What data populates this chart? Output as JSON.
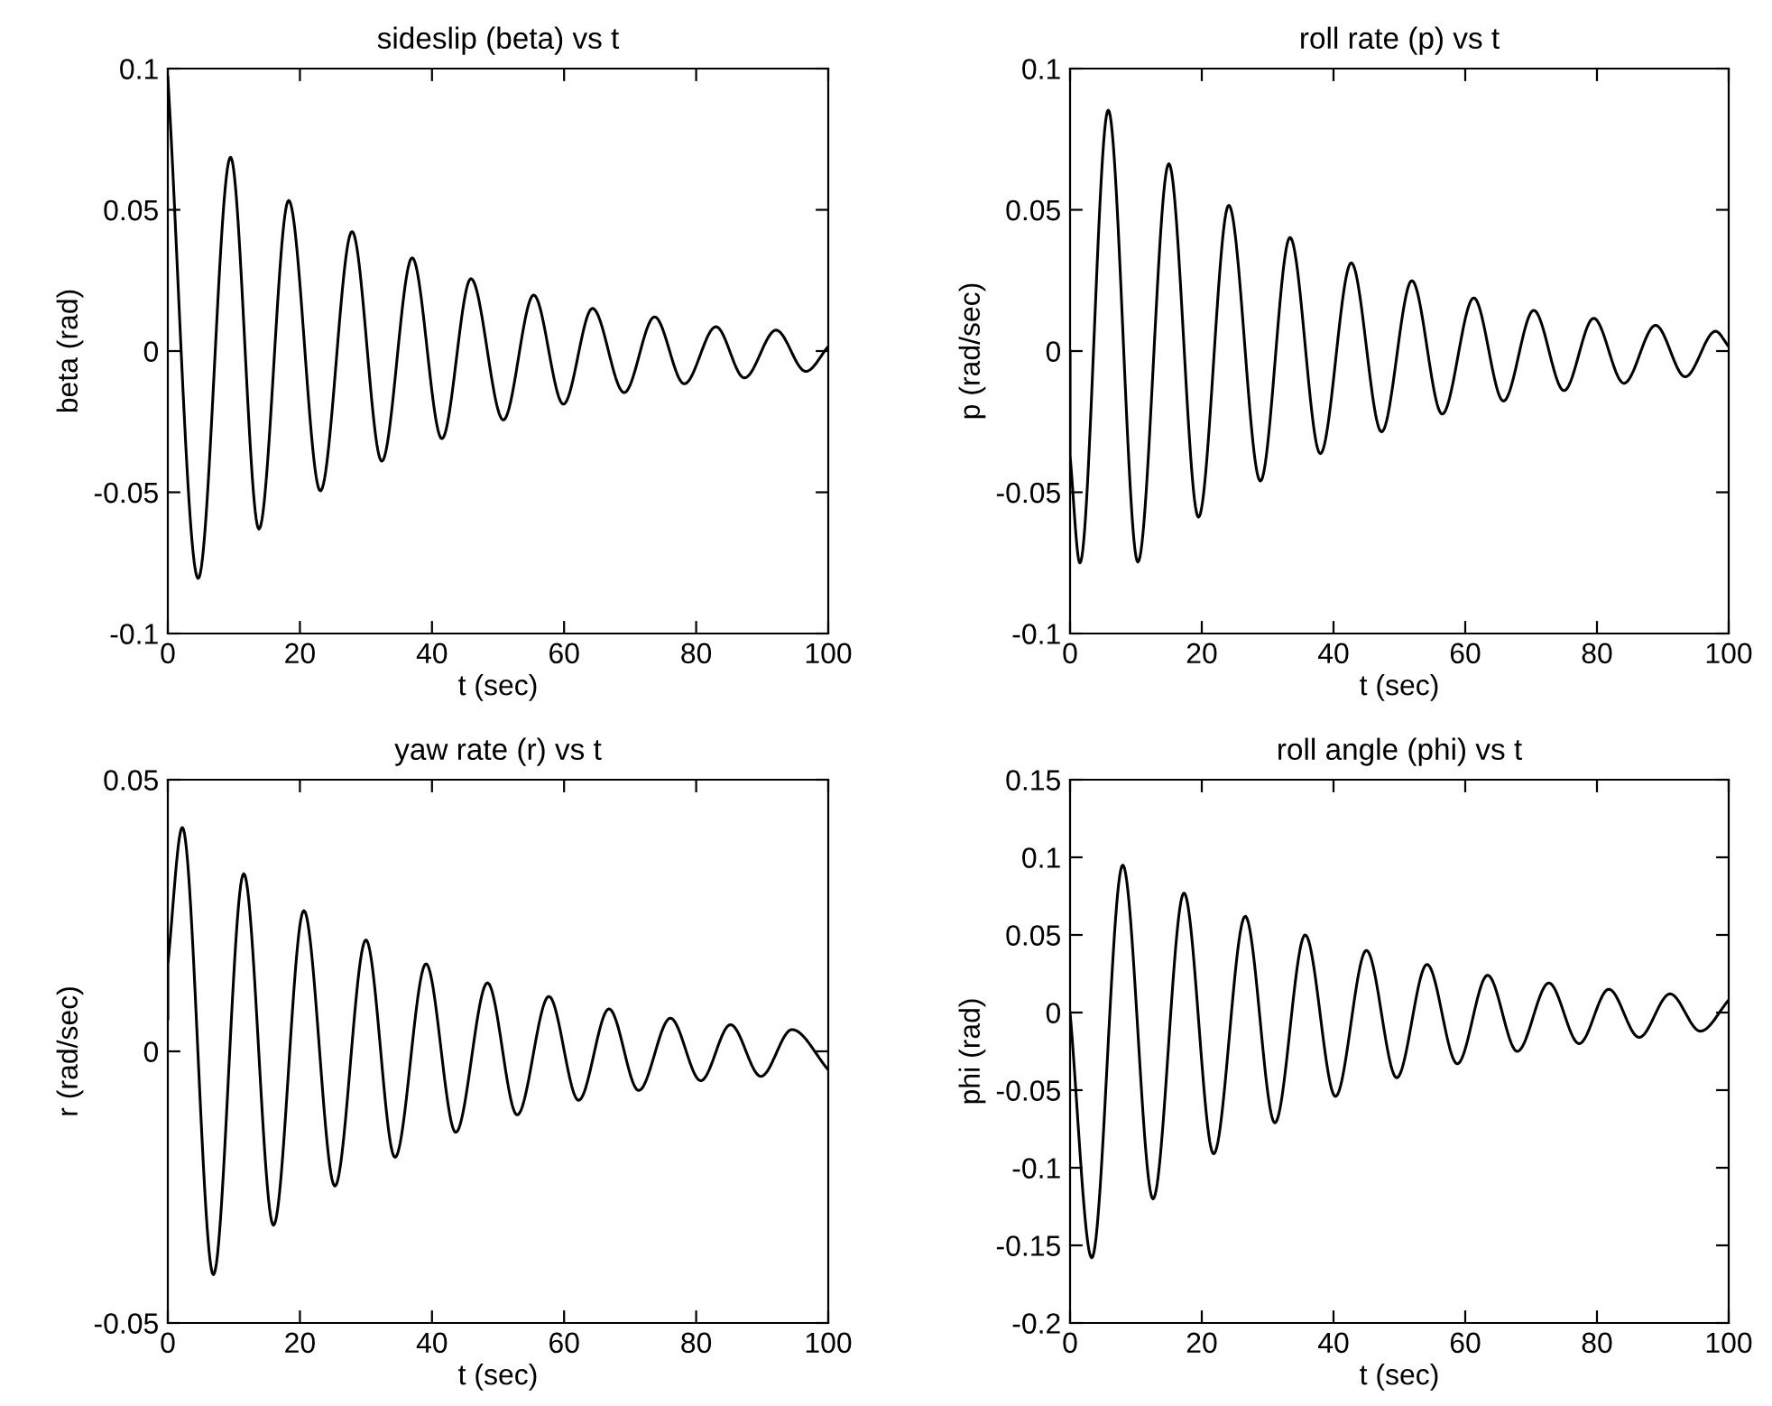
{
  "chart_data": [
    {
      "type": "line",
      "title": "sideslip (beta) vs t",
      "xlabel": "t (sec)",
      "ylabel": "beta (rad)",
      "xlim": [
        0,
        100
      ],
      "xticks": [
        0,
        20,
        40,
        60,
        80,
        100
      ],
      "ylim": [
        -0.1,
        0.1
      ],
      "yticks": [
        -0.1,
        -0.05,
        0,
        0.05,
        0.1
      ],
      "grid": false,
      "legend": false,
      "marker": "none",
      "line_style": "solid",
      "series": [
        {
          "color": "#000000",
          "x": [
            0,
            4.6,
            9.5,
            13.8,
            18.3,
            23.1,
            27.9,
            32.4,
            37,
            41.5,
            45.9,
            50.8,
            55.4,
            59.9,
            64.3,
            69.1,
            73.7,
            78.2,
            83,
            87.3,
            92.1,
            96.6,
            100
          ],
          "values": [
            0.097,
            -0.0805,
            0.0686,
            -0.063,
            0.0533,
            -0.0495,
            0.0423,
            -0.039,
            0.033,
            -0.031,
            0.0256,
            -0.0244,
            0.0198,
            -0.0188,
            0.0151,
            -0.0147,
            0.0121,
            -0.0116,
            0.0086,
            -0.0095,
            0.0074,
            -0.0072,
            0.0016
          ]
        }
      ]
    },
    {
      "type": "line",
      "title": "roll rate (p) vs t",
      "xlabel": "t (sec)",
      "ylabel": "p (rad/sec)",
      "xlim": [
        0,
        100
      ],
      "xticks": [
        0,
        20,
        40,
        60,
        80,
        100
      ],
      "ylim": [
        -0.1,
        0.1
      ],
      "yticks": [
        -0.1,
        -0.05,
        0,
        0.05,
        0.1
      ],
      "grid": false,
      "legend": false,
      "marker": "none",
      "line_style": "solid",
      "series": [
        {
          "color": "#000000",
          "x": [
            0,
            0,
            1.5,
            5.8,
            10.3,
            15,
            19.5,
            24.1,
            28.9,
            33.4,
            38,
            42.7,
            47.3,
            51.9,
            56.5,
            61.3,
            65.8,
            70.4,
            75,
            79.5,
            84.1,
            88.9,
            93.4,
            98,
            100
          ],
          "values": [
            0,
            -0.037,
            -0.075,
            0.0853,
            -0.0747,
            0.0663,
            -0.0588,
            0.0516,
            -0.046,
            0.0402,
            -0.0363,
            0.0312,
            -0.0286,
            0.0249,
            -0.0223,
            0.0188,
            -0.0177,
            0.0144,
            -0.014,
            0.0116,
            -0.0114,
            0.0091,
            -0.0091,
            0.007,
            0.0016
          ]
        }
      ]
    },
    {
      "type": "line",
      "title": "yaw rate (r) vs t",
      "xlabel": "t (sec)",
      "ylabel": "r (rad/sec)",
      "xlim": [
        0,
        100
      ],
      "xticks": [
        0,
        20,
        40,
        60,
        80,
        100
      ],
      "ylim": [
        -0.05,
        0.05
      ],
      "yticks": [
        -0.05,
        0,
        0.05
      ],
      "grid": false,
      "legend": false,
      "marker": "none",
      "line_style": "solid",
      "series": [
        {
          "color": "#000000",
          "x": [
            0,
            0,
            2.2,
            6.9,
            11.5,
            16,
            20.6,
            25.3,
            30,
            34.4,
            39.1,
            43.6,
            48.4,
            52.9,
            57.7,
            62.2,
            66.8,
            71.3,
            76.1,
            80.7,
            85.2,
            89.8,
            94.5,
            100
          ],
          "values": [
            0.006,
            0.016,
            0.0412,
            -0.0411,
            0.0327,
            -0.032,
            0.0259,
            -0.0248,
            0.0205,
            -0.0195,
            0.0161,
            -0.0149,
            0.0126,
            -0.0117,
            0.0101,
            -0.009,
            0.0078,
            -0.0072,
            0.0061,
            -0.0054,
            0.0049,
            -0.0046,
            0.004,
            -0.0034
          ]
        }
      ]
    },
    {
      "type": "line",
      "title": "roll angle (phi) vs t",
      "xlabel": "t (sec)",
      "ylabel": "phi (rad)",
      "xlim": [
        0,
        100
      ],
      "xticks": [
        0,
        20,
        40,
        60,
        80,
        100
      ],
      "ylim": [
        -0.2,
        0.15
      ],
      "yticks": [
        -0.2,
        -0.15,
        -0.1,
        -0.05,
        0,
        0.05,
        0.1,
        0.15
      ],
      "grid": false,
      "legend": false,
      "marker": "none",
      "line_style": "solid",
      "series": [
        {
          "color": "#000000",
          "x": [
            0,
            3.3,
            8,
            12.6,
            17.3,
            21.8,
            26.6,
            31.1,
            35.7,
            40.3,
            45,
            49.6,
            54.2,
            58.8,
            63.4,
            67.9,
            72.7,
            77.3,
            81.8,
            86.4,
            91.1,
            95.7,
            100
          ],
          "values": [
            0,
            -0.158,
            0.095,
            -0.12,
            0.077,
            -0.091,
            0.062,
            -0.071,
            0.05,
            -0.054,
            0.04,
            -0.042,
            0.031,
            -0.033,
            0.024,
            -0.025,
            0.019,
            -0.02,
            0.015,
            -0.016,
            0.012,
            -0.012,
            0.008
          ]
        }
      ]
    }
  ]
}
